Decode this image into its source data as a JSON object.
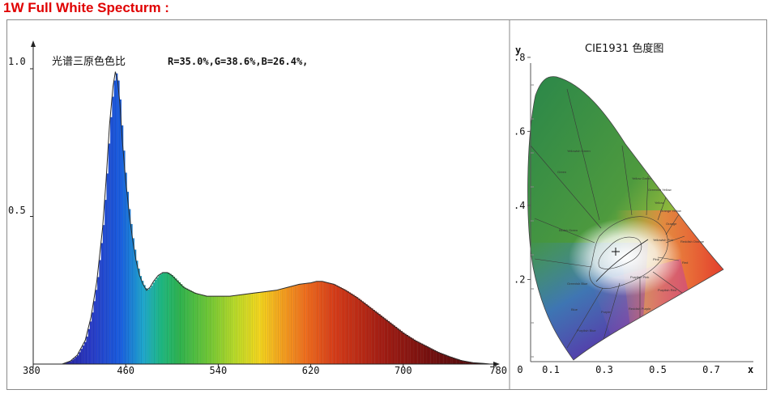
{
  "page_title": "1W Full White Specturm :",
  "chart_data": [
    {
      "type": "area",
      "title": "光谱三原色色比",
      "annotation": "R=35.0%,G=38.6%,B=26.4%,",
      "x_ticks": [
        380,
        460,
        540,
        620,
        700,
        780
      ],
      "y_ticks": [
        "1.0",
        "0.5"
      ],
      "xlim": [
        380,
        780
      ],
      "ylim": [
        0,
        1.0
      ],
      "series": [
        {
          "x": [
            405,
            412,
            418,
            425,
            430,
            435,
            440,
            443,
            446,
            449,
            451,
            453,
            455,
            457,
            460,
            463,
            466,
            469,
            472,
            475,
            478,
            481,
            484,
            488,
            492,
            496,
            500,
            505,
            510,
            515,
            520,
            525,
            530,
            535,
            540,
            550,
            560,
            570,
            580,
            590,
            600,
            610,
            620,
            625,
            630,
            635,
            640,
            645,
            650,
            660,
            670,
            680,
            690,
            700,
            710,
            720,
            730,
            740,
            750,
            760,
            770,
            775
          ],
          "y": [
            0.0,
            0.01,
            0.03,
            0.08,
            0.16,
            0.28,
            0.46,
            0.62,
            0.81,
            0.94,
            0.99,
            0.96,
            0.88,
            0.76,
            0.62,
            0.51,
            0.42,
            0.35,
            0.3,
            0.27,
            0.25,
            0.26,
            0.28,
            0.3,
            0.31,
            0.31,
            0.3,
            0.28,
            0.26,
            0.25,
            0.24,
            0.235,
            0.23,
            0.23,
            0.23,
            0.23,
            0.235,
            0.24,
            0.245,
            0.25,
            0.26,
            0.27,
            0.275,
            0.28,
            0.28,
            0.275,
            0.27,
            0.26,
            0.25,
            0.225,
            0.195,
            0.165,
            0.135,
            0.105,
            0.08,
            0.06,
            0.04,
            0.025,
            0.012,
            0.005,
            0.002,
            0.0
          ]
        }
      ]
    },
    {
      "type": "scatter",
      "title": "CIE1931 色度图",
      "xlabel": "x",
      "ylabel": "y",
      "x_ticks": [
        "0",
        "0.1",
        "0.3",
        "0.5",
        "0.7"
      ],
      "y_ticks": [
        ".8",
        ".6",
        ".4",
        ".2"
      ],
      "xlim": [
        0,
        0.8
      ],
      "ylim": [
        0,
        0.85
      ],
      "regions": [
        "Yellowish Green",
        "Green",
        "Yellow Green",
        "Greenish Yellow",
        "Yellow",
        "Orange Yellow",
        "Orange",
        "Reddish Orange",
        "Red",
        "Bluish Green",
        "Yellowish Pink",
        "Pink",
        "Purplish Pink",
        "Purplish Red",
        "Greenish Blue",
        "Reddish Purple",
        "Purple",
        "Blue",
        "Purplish Blue"
      ],
      "marker": {
        "x": 0.33,
        "y": 0.33
      }
    }
  ],
  "colors": {
    "title": "#e00000"
  }
}
